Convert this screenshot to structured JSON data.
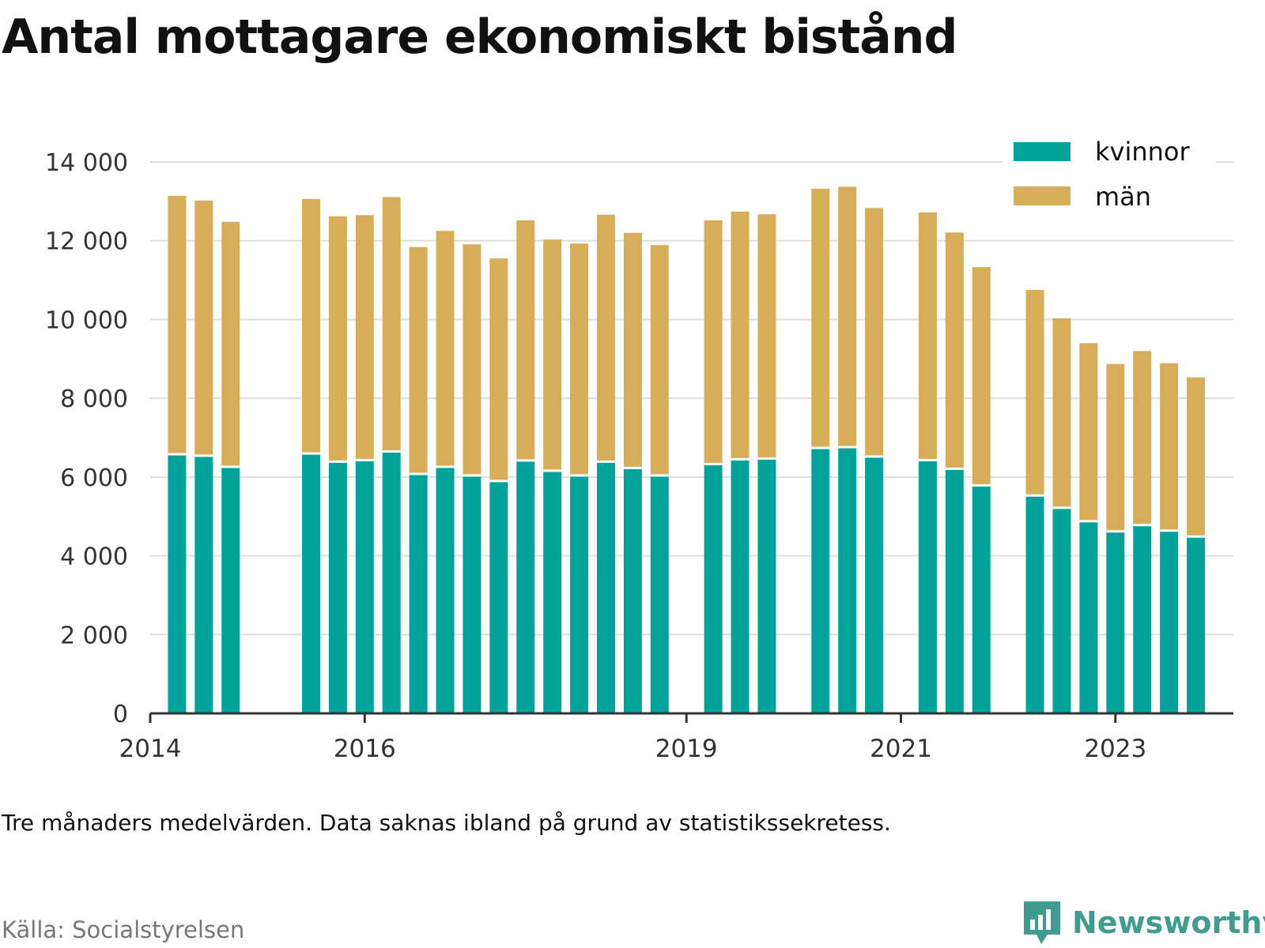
{
  "header": {
    "title": "Antal mottagare ekonomiskt bistånd"
  },
  "footer": {
    "note": "Tre månaders medelvärden. Data saknas ibland på grund av statistikssekretess.",
    "source": "Källa: Socialstyrelsen",
    "brand": "Newsworthy"
  },
  "colors": {
    "kvinnor": "#00a399",
    "man": "#d8ad5a",
    "grid": "#dddddd",
    "axis": "#333333",
    "brand": "#3f9c8e"
  },
  "chart_data": {
    "type": "bar",
    "stacked": true,
    "ylim": [
      0,
      14000
    ],
    "yticks": [
      0,
      2000,
      4000,
      6000,
      8000,
      10000,
      12000,
      14000
    ],
    "ytick_labels": [
      "0",
      "2 000",
      "4 000",
      "6 000",
      "8 000",
      "10 000",
      "12 000",
      "14 000"
    ],
    "xlim": [
      2014,
      2024.1
    ],
    "xticks": [
      2014,
      2016,
      2019,
      2021,
      2023
    ],
    "xtick_labels": [
      "2014",
      "2016",
      "2019",
      "2021",
      "2023"
    ],
    "grid": true,
    "legend_position": "top-right",
    "legend": [
      "kvinnor",
      "män"
    ],
    "x": [
      2014.25,
      2014.5,
      2014.75,
      2015.5,
      2015.75,
      2016.0,
      2016.25,
      2016.5,
      2016.75,
      2017.0,
      2017.25,
      2017.5,
      2017.75,
      2018.0,
      2018.25,
      2018.5,
      2018.75,
      2019.25,
      2019.5,
      2019.75,
      2020.25,
      2020.5,
      2020.75,
      2021.25,
      2021.5,
      2021.75,
      2022.25,
      2022.5,
      2022.75,
      2023.0,
      2023.25,
      2023.5,
      2023.75
    ],
    "series": [
      {
        "name": "kvinnor",
        "values": [
          6580,
          6540,
          6260,
          6600,
          6390,
          6430,
          6650,
          6080,
          6260,
          6040,
          5900,
          6420,
          6160,
          6040,
          6390,
          6230,
          6040,
          6330,
          6450,
          6470,
          6740,
          6760,
          6520,
          6430,
          6210,
          5790,
          5530,
          5220,
          4880,
          4620,
          4780,
          4640,
          4490
        ]
      },
      {
        "name": "män",
        "values": [
          6560,
          6480,
          6220,
          6460,
          6230,
          6220,
          6460,
          5760,
          5990,
          5870,
          5650,
          6100,
          5870,
          5890,
          6270,
          5970,
          5850,
          6190,
          6290,
          6200,
          6580,
          6610,
          6310,
          6290,
          6000,
          5540,
          5220,
          4810,
          4520,
          4250,
          4420,
          4250,
          4040
        ]
      }
    ]
  }
}
